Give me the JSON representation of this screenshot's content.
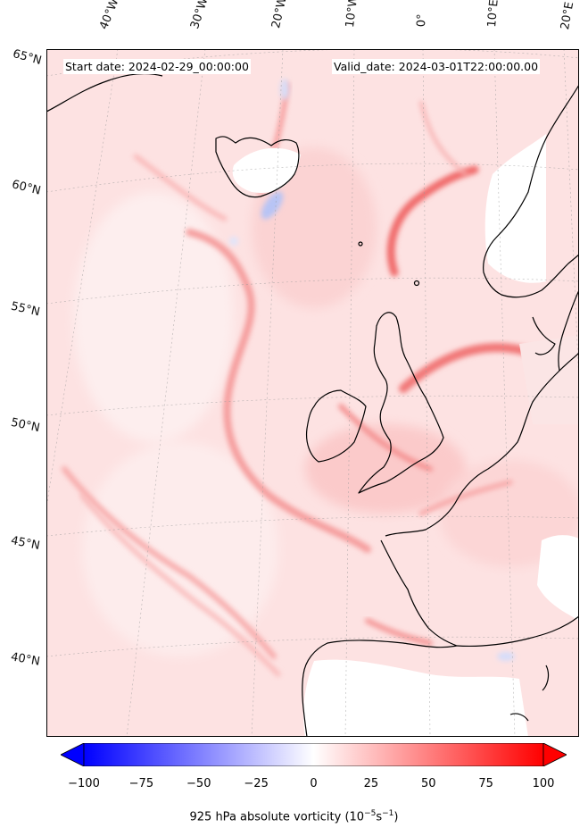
{
  "map": {
    "start_date": "Start date: 2024-02-29_00:00:00",
    "valid_date": "Valid_date: 2024-03-01T22:00:00.00",
    "lon_labels": [
      "40°W",
      "30°W",
      "20°W",
      "10°W",
      "0°",
      "10°E",
      "20°E"
    ],
    "lat_labels": [
      "65°N",
      "60°N",
      "55°N",
      "50°N",
      "45°N",
      "40°N"
    ],
    "colors": {
      "negative_max": "#0000ff",
      "zero": "#ffffff",
      "positive_max": "#ff0000",
      "coastline": "#000000",
      "land_calm": "#ffffff"
    }
  },
  "colorbar": {
    "min": -100,
    "max": 100,
    "extend": "both",
    "ticks": [
      "−100",
      "−75",
      "−50",
      "−25",
      "0",
      "25",
      "50",
      "75",
      "100"
    ],
    "tick_values": [
      -100,
      -75,
      -50,
      -25,
      0,
      25,
      50,
      75,
      100
    ],
    "label_text": "925 hPa absolute vorticity (10",
    "label_sup1": "−5",
    "label_mid": "s",
    "label_sup2": "−1",
    "label_end": ")"
  }
}
